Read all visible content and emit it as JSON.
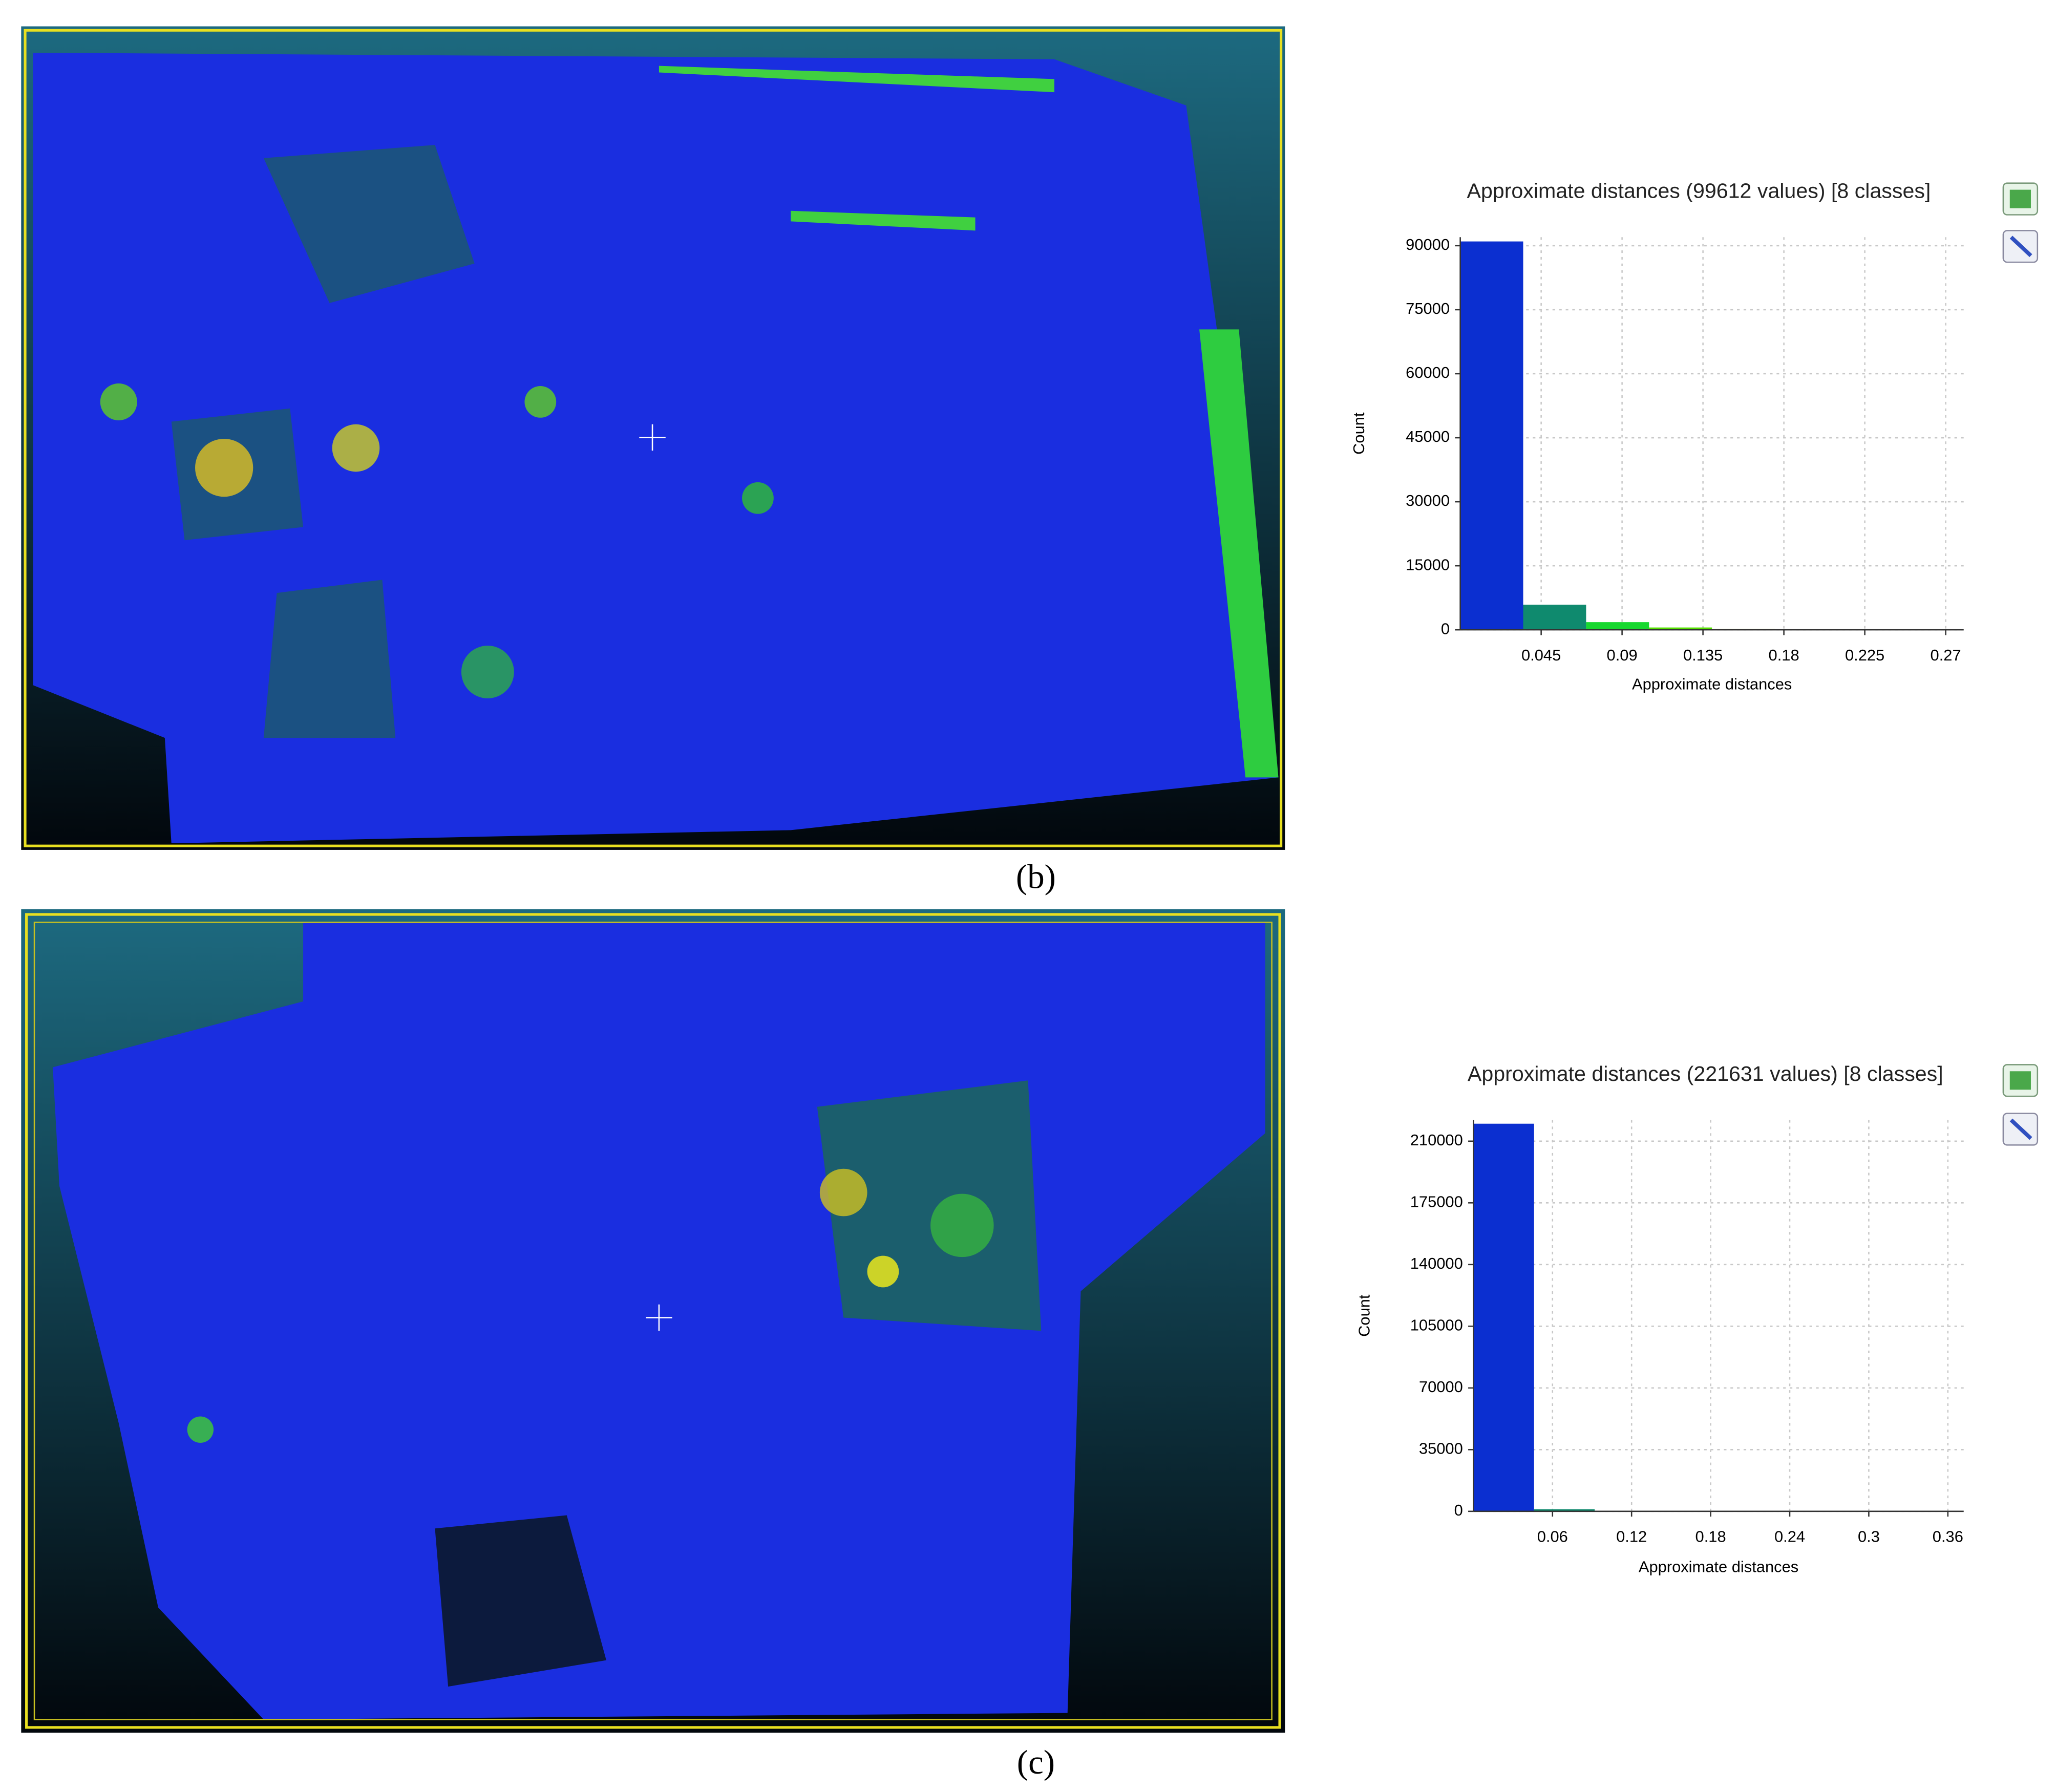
{
  "chart_data": [
    {
      "type": "histogram",
      "title": "Approximate distances (99612 values) [8 classes]",
      "x_label": "Approximate distances",
      "y_label": "Count",
      "bins": [
        0,
        0.035,
        0.07,
        0.105,
        0.14,
        0.175,
        0.21,
        0.245,
        0.28
      ],
      "values": [
        91000,
        5900,
        1800,
        550,
        220,
        90,
        40,
        12
      ],
      "colors": [
        "#0b2fd0",
        "#0f8a6e",
        "#18d830",
        "#55e000",
        "#a0e000",
        "#e0e000",
        "#f0a000",
        "#e02000"
      ],
      "xlim": [
        0,
        0.28
      ],
      "xticks": [
        0.045,
        0.09,
        0.135,
        0.18,
        0.225,
        0.27
      ],
      "ylim": [
        0,
        92000
      ],
      "yticks": [
        0,
        15000,
        30000,
        45000,
        60000,
        75000,
        90000
      ],
      "grid": true
    },
    {
      "type": "histogram",
      "title": "Approximate distances (221631 values) [8 classes]",
      "x_label": "Approximate distances",
      "y_label": "Count",
      "bins": [
        0,
        0.046,
        0.092,
        0.138,
        0.184,
        0.23,
        0.276,
        0.322,
        0.368
      ],
      "values": [
        219900,
        1200,
        350,
        120,
        40,
        15,
        5,
        1
      ],
      "colors": [
        "#0b2fd0",
        "#0f8a6e",
        "#18d830",
        "#55e000",
        "#a0e000",
        "#e0e000",
        "#f0a000",
        "#e02000"
      ],
      "xlim": [
        0,
        0.372
      ],
      "xticks": [
        0.06,
        0.12,
        0.18,
        0.24,
        0.3,
        0.36
      ],
      "ylim": [
        0,
        222000
      ],
      "yticks": [
        0,
        35000,
        70000,
        105000,
        140000,
        175000,
        210000
      ],
      "grid": true
    }
  ],
  "captions": [
    "(b)",
    "(c)"
  ]
}
